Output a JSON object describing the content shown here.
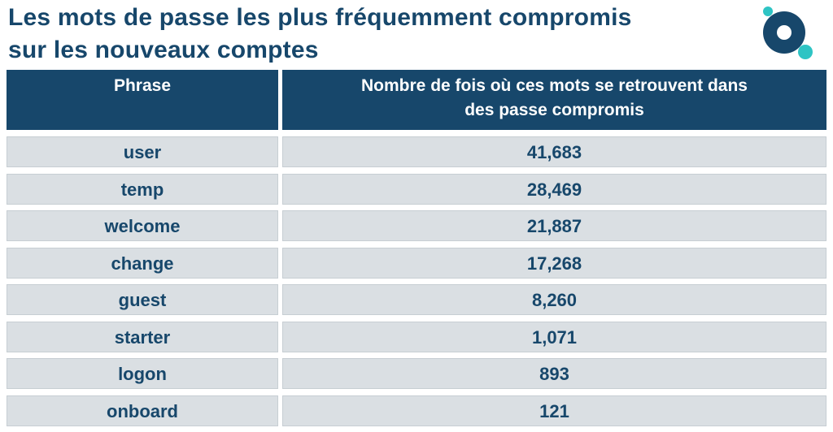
{
  "title": {
    "line1": "Les mots de passe les plus fréquemment compromis",
    "line2": "sur les nouveaux comptes"
  },
  "colors": {
    "header_bg": "#17476b",
    "cell_bg": "#dadfe3",
    "text": "#17476b",
    "logo_accent": "#2ec4c4"
  },
  "logo_icon": "brand-logo-icon",
  "chart_data": {
    "type": "table",
    "columns": [
      "Phrase",
      "Nombre de fois où ces mots se retrouvent dans des passe compromis"
    ],
    "header": {
      "col1": "Phrase",
      "col2_line1": "Nombre de fois où ces mots se retrouvent dans",
      "col2_line2": "des passe compromis"
    },
    "rows": [
      {
        "phrase": "user",
        "count": "41,683"
      },
      {
        "phrase": "temp",
        "count": "28,469"
      },
      {
        "phrase": "welcome",
        "count": "21,887"
      },
      {
        "phrase": "change",
        "count": "17,268"
      },
      {
        "phrase": "guest",
        "count": "8,260"
      },
      {
        "phrase": "starter",
        "count": "1,071"
      },
      {
        "phrase": "logon",
        "count": "893"
      },
      {
        "phrase": "onboard",
        "count": "121"
      }
    ]
  }
}
